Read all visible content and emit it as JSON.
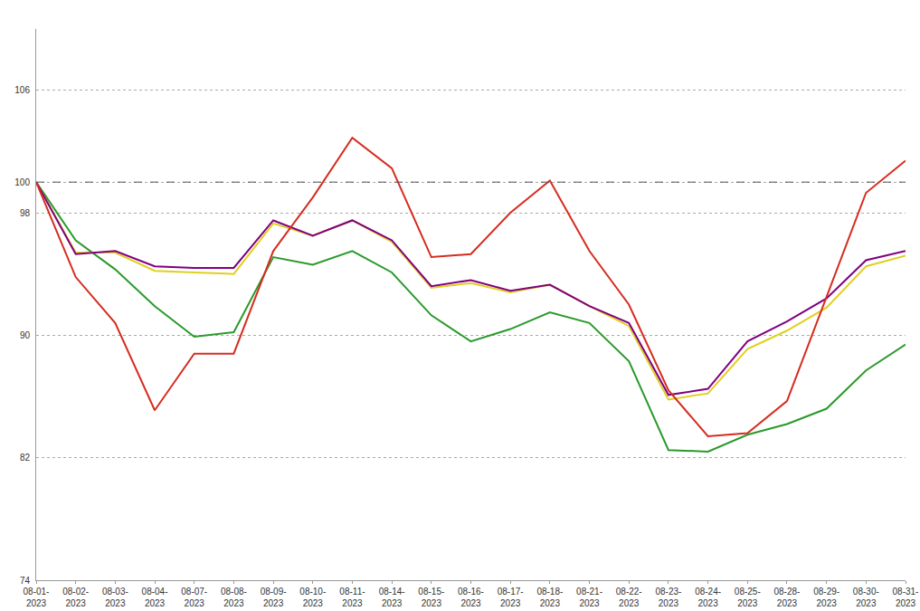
{
  "chart_data": {
    "type": "line",
    "categories": [
      "08-01-2023",
      "08-02-2023",
      "08-03-2023",
      "08-04-2023",
      "08-07-2023",
      "08-08-2023",
      "08-09-2023",
      "08-10-2023",
      "08-11-2023",
      "08-14-2023",
      "08-15-2023",
      "08-16-2023",
      "08-17-2023",
      "08-18-2023",
      "08-21-2023",
      "08-22-2023",
      "08-23-2023",
      "08-24-2023",
      "08-25-2023",
      "08-28-2023",
      "08-29-2023",
      "08-30-2023",
      "08-31-2023"
    ],
    "series": [
      {
        "color": "#2a9a2a",
        "values": [
          100,
          96.2,
          94.3,
          91.9,
          89.9,
          90.2,
          95.1,
          94.6,
          95.5,
          94.1,
          91.3,
          89.6,
          90.4,
          91.5,
          90.8,
          88.3,
          82.5,
          82.4,
          83.5,
          84.2,
          85.2,
          87.7,
          89.4
        ]
      },
      {
        "color": "#e0d020",
        "values": [
          100,
          95.4,
          95.4,
          94.2,
          94.1,
          94.0,
          97.3,
          96.5,
          97.5,
          96.1,
          93.1,
          93.4,
          92.8,
          93.3,
          91.9,
          90.6,
          85.8,
          86.2,
          89.1,
          90.3,
          91.8,
          94.5,
          95.2
        ]
      },
      {
        "color": "#800080",
        "values": [
          100,
          95.3,
          95.5,
          94.5,
          94.4,
          94.4,
          97.5,
          96.5,
          97.5,
          96.2,
          93.2,
          93.6,
          92.9,
          93.3,
          91.9,
          90.8,
          86.1,
          86.5,
          89.6,
          90.9,
          92.4,
          94.9,
          95.5
        ]
      },
      {
        "color": "#d62c1f",
        "values": [
          100,
          93.8,
          90.8,
          85.1,
          88.8,
          88.8,
          95.5,
          99.0,
          102.9,
          100.9,
          95.1,
          95.3,
          98.0,
          100.1,
          95.5,
          92.0,
          86.4,
          83.4,
          83.6,
          85.7,
          92.5,
          99.3,
          101.4
        ]
      }
    ],
    "ylim": [
      74,
      110
    ],
    "yticks": [
      74,
      82,
      90,
      98,
      100,
      106
    ],
    "grid": true
  }
}
